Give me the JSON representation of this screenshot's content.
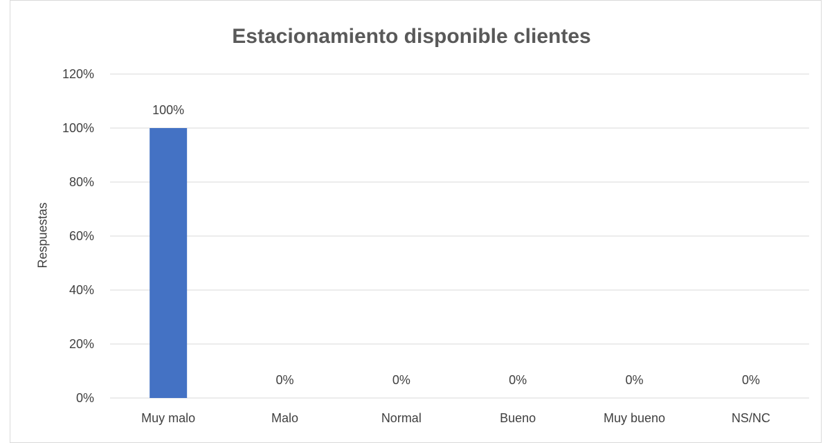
{
  "chart_data": {
    "type": "bar",
    "title": "Estacionamiento disponible clientes",
    "xlabel": "",
    "ylabel": "Respuestas",
    "categories": [
      "Muy malo",
      "Malo",
      "Normal",
      "Bueno",
      "Muy bueno",
      "NS/NC"
    ],
    "values": [
      100,
      0,
      0,
      0,
      0,
      0
    ],
    "data_labels": [
      "100%",
      "0%",
      "0%",
      "0%",
      "0%",
      "0%"
    ],
    "ylim": [
      0,
      120
    ],
    "y_ticks": [
      0,
      20,
      40,
      60,
      80,
      100,
      120
    ],
    "y_tick_labels": [
      "0%",
      "20%",
      "40%",
      "60%",
      "80%",
      "100%",
      "120%"
    ],
    "grid": true,
    "legend": "none",
    "colors": {
      "bar": "#4472C4",
      "grid": "#d9d9d9",
      "tick_text": "#404040",
      "title_text": "#595959"
    }
  }
}
